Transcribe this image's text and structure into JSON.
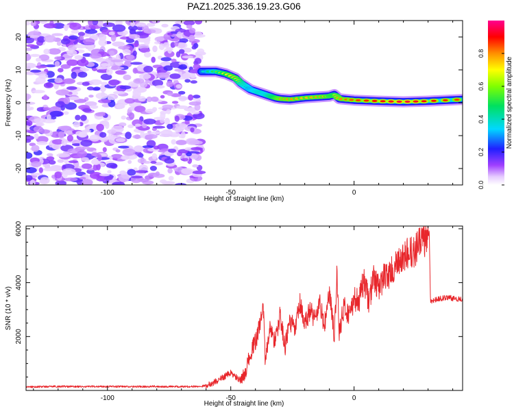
{
  "figure_title": "PAZ1.2025.336.19.23.G06",
  "chart_data": [
    {
      "type": "heatmap",
      "title": "PAZ1.2025.336.19.23.G06",
      "xlabel": "Height of straight line (km)",
      "ylabel": "Frequency (Hz)",
      "xlim": [
        -133,
        44
      ],
      "ylim": [
        -25,
        25
      ],
      "xticks": [
        -100,
        -50,
        0
      ],
      "yticks": [
        -20,
        -10,
        0,
        10,
        20
      ],
      "colorbar": {
        "label": "Normalized spectral amplitude",
        "range": [
          0,
          1
        ],
        "ticks": [
          "0.0",
          "0.2",
          "0.4",
          "0.6",
          "0.8"
        ]
      },
      "noise_region_x": [
        -133,
        -62
      ],
      "ridge": {
        "x": [
          -62,
          -56,
          -52,
          -48,
          -46,
          -44,
          -42,
          -40,
          -38,
          -36,
          -34,
          -32,
          -30,
          -26,
          -20,
          -14,
          -10,
          -8,
          -6,
          0,
          10,
          20,
          30,
          44
        ],
        "freq": [
          9.5,
          9.5,
          8.8,
          7.5,
          6.0,
          5.0,
          4.0,
          3.5,
          3.0,
          2.5,
          2.0,
          1.5,
          1.2,
          1.0,
          1.5,
          1.8,
          2.0,
          2.5,
          1.2,
          0.8,
          0.5,
          0.3,
          0.5,
          1.0
        ],
        "amplitude": [
          0.35,
          0.55,
          0.7,
          0.75,
          0.6,
          0.5,
          0.45,
          0.5,
          0.55,
          0.5,
          0.6,
          0.7,
          0.8,
          0.8,
          0.75,
          0.8,
          0.75,
          0.7,
          0.8,
          0.85,
          0.9,
          0.95,
          0.9,
          0.85
        ]
      }
    },
    {
      "type": "line",
      "xlabel": "Height of straight line (km)",
      "ylabel": "SNR (10 * v/v)",
      "xlim": [
        -133,
        44
      ],
      "ylim": [
        0,
        6100
      ],
      "xticks": [
        -100,
        -50,
        0
      ],
      "yticks": [
        2000,
        4000,
        6000
      ],
      "color": "#e8262b",
      "series": [
        {
          "name": "SNR",
          "x": [
            -133,
            -120,
            -110,
            -100,
            -90,
            -80,
            -70,
            -62,
            -58,
            -55,
            -52,
            -50,
            -48,
            -46,
            -44,
            -42,
            -40,
            -38,
            -37,
            -36,
            -34,
            -32,
            -30,
            -28,
            -26,
            -24,
            -22,
            -20,
            -18,
            -16,
            -14,
            -12,
            -10,
            -8,
            -7,
            -6,
            -4,
            -2,
            0,
            2,
            4,
            6,
            8,
            10,
            12,
            14,
            16,
            18,
            20,
            22,
            24,
            26,
            28,
            29.5,
            30.5,
            31,
            34,
            38,
            41,
            44
          ],
          "y": [
            130,
            150,
            140,
            150,
            140,
            150,
            140,
            150,
            250,
            380,
            550,
            650,
            500,
            350,
            700,
            1400,
            1800,
            2500,
            3500,
            1000,
            2400,
            1800,
            2800,
            1600,
            2600,
            2200,
            3200,
            2400,
            3000,
            2700,
            3200,
            2400,
            3600,
            2000,
            4300,
            2200,
            3100,
            2800,
            3400,
            3300,
            4100,
            3300,
            4200,
            3800,
            4200,
            4300,
            4500,
            4700,
            4900,
            5100,
            5100,
            5400,
            5500,
            5700,
            5900,
            3300,
            3400,
            3450,
            3400,
            3400
          ]
        }
      ]
    }
  ]
}
